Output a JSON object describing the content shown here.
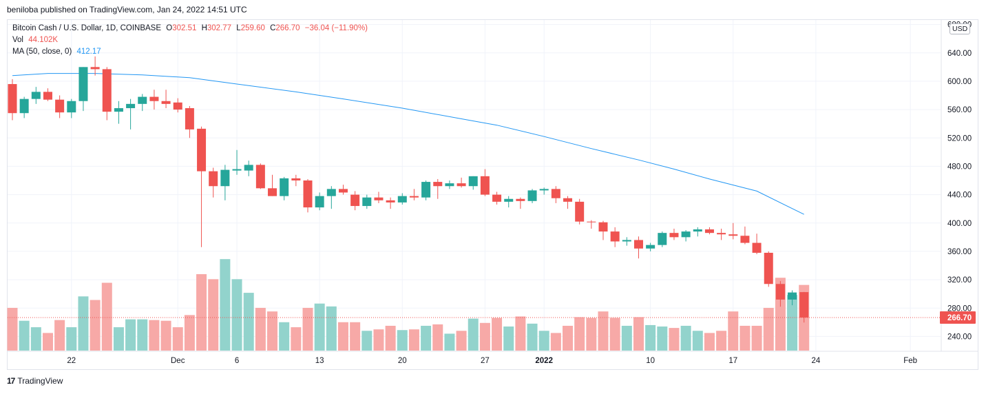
{
  "header": {
    "published_line": "beniloba published on TradingView.com, Jan 24, 2022 14:51 UTC"
  },
  "legend": {
    "symbol": "Bitcoin Cash / U.S. Dollar, 1D, COINBASE",
    "o_label": "O",
    "o_value": "302.51",
    "h_label": "H",
    "h_value": "302.77",
    "l_label": "L",
    "l_value": "259.60",
    "c_label": "C",
    "c_value": "266.70",
    "change": "−36.04 (−11.90%)",
    "vol_label": "Vol",
    "vol_value": "44.102K",
    "ma_label": "MA (50, close, 0)",
    "ma_value": "412.17"
  },
  "currency_button": "USD",
  "footer": {
    "logo_mark": "17",
    "brand": "TradingView"
  },
  "colors": {
    "up": "#26a69a",
    "down": "#ef5350",
    "vol_up": "#92d3cc",
    "vol_down": "#f7a9a7",
    "ma": "#2196f3",
    "grid": "#f0f3fa"
  },
  "chart_data": {
    "type": "candlestick",
    "y_ticks": [
      "240.00",
      "280.00",
      "320.00",
      "360.00",
      "400.00",
      "440.00",
      "480.00",
      "520.00",
      "560.00",
      "600.00",
      "640.00",
      "680.00"
    ],
    "x_ticks": [
      {
        "label": "22",
        "date": "2021-11-22"
      },
      {
        "label": "Dec",
        "date": "2021-12-01"
      },
      {
        "label": "6",
        "date": "2021-12-06"
      },
      {
        "label": "13",
        "date": "2021-12-13"
      },
      {
        "label": "20",
        "date": "2021-12-20"
      },
      {
        "label": "27",
        "date": "2021-12-27"
      },
      {
        "label": "2022",
        "date": "2022-01-01"
      },
      {
        "label": "10",
        "date": "2022-01-10"
      },
      {
        "label": "17",
        "date": "2022-01-17"
      },
      {
        "label": "24",
        "date": "2022-01-24"
      },
      {
        "label": "Feb",
        "date": "2022-02-01"
      }
    ],
    "last_price_label": "266.70",
    "last_price": 266.7,
    "candles": [
      {
        "date": "2021-11-17",
        "o": 596,
        "h": 603,
        "l": 545,
        "c": 555,
        "v": 270
      },
      {
        "date": "2021-11-18",
        "o": 555,
        "h": 578,
        "l": 548,
        "c": 575,
        "v": 252
      },
      {
        "date": "2021-11-19",
        "o": 575,
        "h": 592,
        "l": 568,
        "c": 585,
        "v": 243
      },
      {
        "date": "2021-11-20",
        "o": 585,
        "h": 590,
        "l": 572,
        "c": 574,
        "v": 235
      },
      {
        "date": "2021-11-21",
        "o": 574,
        "h": 580,
        "l": 548,
        "c": 556,
        "v": 253
      },
      {
        "date": "2021-11-22",
        "o": 556,
        "h": 575,
        "l": 548,
        "c": 572,
        "v": 243
      },
      {
        "date": "2021-11-23",
        "o": 572,
        "h": 620,
        "l": 558,
        "c": 620,
        "v": 286
      },
      {
        "date": "2021-11-24",
        "o": 620,
        "h": 635,
        "l": 608,
        "c": 617,
        "v": 281
      },
      {
        "date": "2021-11-25",
        "o": 617,
        "h": 620,
        "l": 545,
        "c": 557,
        "v": 305
      },
      {
        "date": "2021-11-26",
        "o": 557,
        "h": 572,
        "l": 540,
        "c": 562,
        "v": 243
      },
      {
        "date": "2021-11-27",
        "o": 562,
        "h": 575,
        "l": 532,
        "c": 568,
        "v": 254
      },
      {
        "date": "2021-11-28",
        "o": 568,
        "h": 582,
        "l": 558,
        "c": 578,
        "v": 254
      },
      {
        "date": "2021-11-29",
        "o": 578,
        "h": 588,
        "l": 560,
        "c": 572,
        "v": 253
      },
      {
        "date": "2021-11-30",
        "o": 572,
        "h": 588,
        "l": 562,
        "c": 568,
        "v": 252
      },
      {
        "date": "2021-12-01",
        "o": 570,
        "h": 576,
        "l": 556,
        "c": 560,
        "v": 243
      },
      {
        "date": "2021-12-02",
        "o": 562,
        "h": 565,
        "l": 520,
        "c": 532,
        "v": 260
      },
      {
        "date": "2021-12-03",
        "o": 533,
        "h": 536,
        "l": 366,
        "c": 473,
        "v": 317
      },
      {
        "date": "2021-12-04",
        "o": 473,
        "h": 478,
        "l": 436,
        "c": 452,
        "v": 310
      },
      {
        "date": "2021-12-05",
        "o": 452,
        "h": 482,
        "l": 432,
        "c": 475,
        "v": 338
      },
      {
        "date": "2021-12-06",
        "o": 474,
        "h": 503,
        "l": 468,
        "c": 476,
        "v": 310
      },
      {
        "date": "2021-12-07",
        "o": 474,
        "h": 488,
        "l": 466,
        "c": 482,
        "v": 291
      },
      {
        "date": "2021-12-08",
        "o": 482,
        "h": 484,
        "l": 448,
        "c": 449,
        "v": 270
      },
      {
        "date": "2021-12-09",
        "o": 449,
        "h": 468,
        "l": 438,
        "c": 438,
        "v": 265
      },
      {
        "date": "2021-12-10",
        "o": 438,
        "h": 465,
        "l": 432,
        "c": 463,
        "v": 250
      },
      {
        "date": "2021-12-11",
        "o": 463,
        "h": 468,
        "l": 452,
        "c": 460,
        "v": 243
      },
      {
        "date": "2021-12-12",
        "o": 460,
        "h": 462,
        "l": 415,
        "c": 422,
        "v": 270
      },
      {
        "date": "2021-12-13",
        "o": 422,
        "h": 443,
        "l": 418,
        "c": 438,
        "v": 276
      },
      {
        "date": "2021-12-14",
        "o": 438,
        "h": 452,
        "l": 420,
        "c": 448,
        "v": 272
      },
      {
        "date": "2021-12-15",
        "o": 448,
        "h": 454,
        "l": 440,
        "c": 443,
        "v": 250
      },
      {
        "date": "2021-12-16",
        "o": 440,
        "h": 445,
        "l": 418,
        "c": 424,
        "v": 250
      },
      {
        "date": "2021-12-17",
        "o": 424,
        "h": 440,
        "l": 420,
        "c": 436,
        "v": 238
      },
      {
        "date": "2021-12-18",
        "o": 436,
        "h": 444,
        "l": 428,
        "c": 432,
        "v": 240
      },
      {
        "date": "2021-12-19",
        "o": 432,
        "h": 436,
        "l": 420,
        "c": 429,
        "v": 245
      },
      {
        "date": "2021-12-20",
        "o": 429,
        "h": 442,
        "l": 426,
        "c": 438,
        "v": 239
      },
      {
        "date": "2021-12-21",
        "o": 438,
        "h": 448,
        "l": 432,
        "c": 436,
        "v": 240
      },
      {
        "date": "2021-12-22",
        "o": 436,
        "h": 460,
        "l": 432,
        "c": 458,
        "v": 245
      },
      {
        "date": "2021-12-23",
        "o": 458,
        "h": 462,
        "l": 434,
        "c": 452,
        "v": 247
      },
      {
        "date": "2021-12-24",
        "o": 452,
        "h": 460,
        "l": 448,
        "c": 456,
        "v": 234
      },
      {
        "date": "2021-12-25",
        "o": 456,
        "h": 464,
        "l": 450,
        "c": 452,
        "v": 238
      },
      {
        "date": "2021-12-26",
        "o": 452,
        "h": 466,
        "l": 447,
        "c": 466,
        "v": 255
      },
      {
        "date": "2021-12-27",
        "o": 466,
        "h": 476,
        "l": 438,
        "c": 440,
        "v": 249
      },
      {
        "date": "2021-12-28",
        "o": 440,
        "h": 444,
        "l": 426,
        "c": 430,
        "v": 256
      },
      {
        "date": "2021-12-29",
        "o": 430,
        "h": 438,
        "l": 422,
        "c": 434,
        "v": 244
      },
      {
        "date": "2021-12-30",
        "o": 434,
        "h": 436,
        "l": 420,
        "c": 431,
        "v": 258
      },
      {
        "date": "2021-12-31",
        "o": 431,
        "h": 448,
        "l": 428,
        "c": 446,
        "v": 248
      },
      {
        "date": "2022-01-01",
        "o": 446,
        "h": 450,
        "l": 440,
        "c": 448,
        "v": 238
      },
      {
        "date": "2022-01-02",
        "o": 448,
        "h": 452,
        "l": 428,
        "c": 435,
        "v": 235
      },
      {
        "date": "2022-01-03",
        "o": 435,
        "h": 438,
        "l": 420,
        "c": 430,
        "v": 245
      },
      {
        "date": "2022-01-04",
        "o": 430,
        "h": 434,
        "l": 398,
        "c": 402,
        "v": 257
      },
      {
        "date": "2022-01-05",
        "o": 402,
        "h": 404,
        "l": 392,
        "c": 401,
        "v": 256
      },
      {
        "date": "2022-01-06",
        "o": 401,
        "h": 403,
        "l": 376,
        "c": 388,
        "v": 265
      },
      {
        "date": "2022-01-07",
        "o": 388,
        "h": 394,
        "l": 366,
        "c": 374,
        "v": 256
      },
      {
        "date": "2022-01-08",
        "o": 374,
        "h": 380,
        "l": 368,
        "c": 376,
        "v": 245
      },
      {
        "date": "2022-01-09",
        "o": 376,
        "h": 381,
        "l": 350,
        "c": 364,
        "v": 257
      },
      {
        "date": "2022-01-10",
        "o": 364,
        "h": 372,
        "l": 360,
        "c": 369,
        "v": 246
      },
      {
        "date": "2022-01-11",
        "o": 369,
        "h": 388,
        "l": 366,
        "c": 386,
        "v": 244
      },
      {
        "date": "2022-01-12",
        "o": 386,
        "h": 392,
        "l": 376,
        "c": 380,
        "v": 242
      },
      {
        "date": "2022-01-13",
        "o": 380,
        "h": 390,
        "l": 374,
        "c": 388,
        "v": 245
      },
      {
        "date": "2022-01-14",
        "o": 388,
        "h": 394,
        "l": 381,
        "c": 391,
        "v": 238
      },
      {
        "date": "2022-01-15",
        "o": 391,
        "h": 394,
        "l": 384,
        "c": 386,
        "v": 235
      },
      {
        "date": "2022-01-16",
        "o": 386,
        "h": 392,
        "l": 376,
        "c": 384,
        "v": 238
      },
      {
        "date": "2022-01-17",
        "o": 384,
        "h": 400,
        "l": 377,
        "c": 382,
        "v": 265
      },
      {
        "date": "2022-01-18",
        "o": 382,
        "h": 395,
        "l": 370,
        "c": 372,
        "v": 245
      },
      {
        "date": "2022-01-19",
        "o": 372,
        "h": 385,
        "l": 356,
        "c": 358,
        "v": 245
      },
      {
        "date": "2022-01-20",
        "o": 358,
        "h": 360,
        "l": 310,
        "c": 314,
        "v": 270
      },
      {
        "date": "2022-01-21",
        "o": 314,
        "h": 318,
        "l": 282,
        "c": 292,
        "v": 312
      },
      {
        "date": "2022-01-22",
        "o": 292,
        "h": 305,
        "l": 284,
        "c": 302,
        "v": 288
      },
      {
        "date": "2022-01-23",
        "o": 302.51,
        "h": 302.77,
        "l": 259.6,
        "c": 266.7,
        "v": 302
      }
    ],
    "ma50": [
      [
        "2021-11-17",
        608
      ],
      [
        "2021-11-20",
        611
      ],
      [
        "2021-11-24",
        611
      ],
      [
        "2021-11-28",
        609
      ],
      [
        "2021-12-02",
        605
      ],
      [
        "2021-12-06",
        596
      ],
      [
        "2021-12-11",
        585
      ],
      [
        "2021-12-15",
        575
      ],
      [
        "2021-12-20",
        562
      ],
      [
        "2021-12-25",
        547
      ],
      [
        "2021-12-28",
        538
      ],
      [
        "2022-01-01",
        522
      ],
      [
        "2022-01-05",
        505
      ],
      [
        "2022-01-09",
        489
      ],
      [
        "2022-01-12",
        476
      ],
      [
        "2022-01-15",
        462
      ],
      [
        "2022-01-19",
        445
      ],
      [
        "2022-01-23",
        412.17
      ]
    ]
  }
}
